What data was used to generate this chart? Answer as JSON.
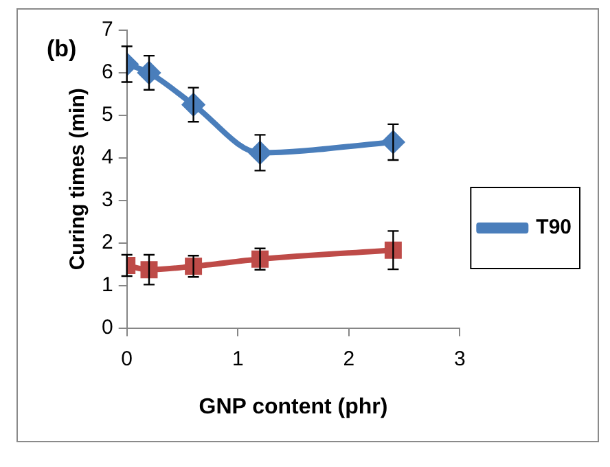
{
  "chart_data": {
    "type": "line",
    "xlabel": "GNP content (phr)",
    "ylabel": "Curing times (min)",
    "annotations": [
      "(b)"
    ],
    "x": [
      0,
      0.2,
      0.6,
      1.2,
      2.4
    ],
    "series": [
      {
        "name": "T90",
        "color": "#4a7ebb",
        "marker": "diamond",
        "values": [
          6.2,
          6.0,
          5.25,
          4.12,
          4.37
        ],
        "errors": [
          0.42,
          0.4,
          0.4,
          0.42,
          0.42
        ]
      },
      {
        "color": "#be4b48",
        "marker": "square",
        "values": [
          1.47,
          1.37,
          1.45,
          1.62,
          1.83
        ],
        "errors": [
          0.25,
          0.35,
          0.25,
          0.25,
          0.45
        ]
      }
    ],
    "xlim": [
      0,
      3
    ],
    "xticks": [
      0,
      1,
      2,
      3
    ],
    "ylim": [
      0,
      7
    ],
    "yticks": [
      0,
      1,
      2,
      3,
      4,
      5,
      6,
      7
    ],
    "grid": false,
    "legend": "right"
  }
}
